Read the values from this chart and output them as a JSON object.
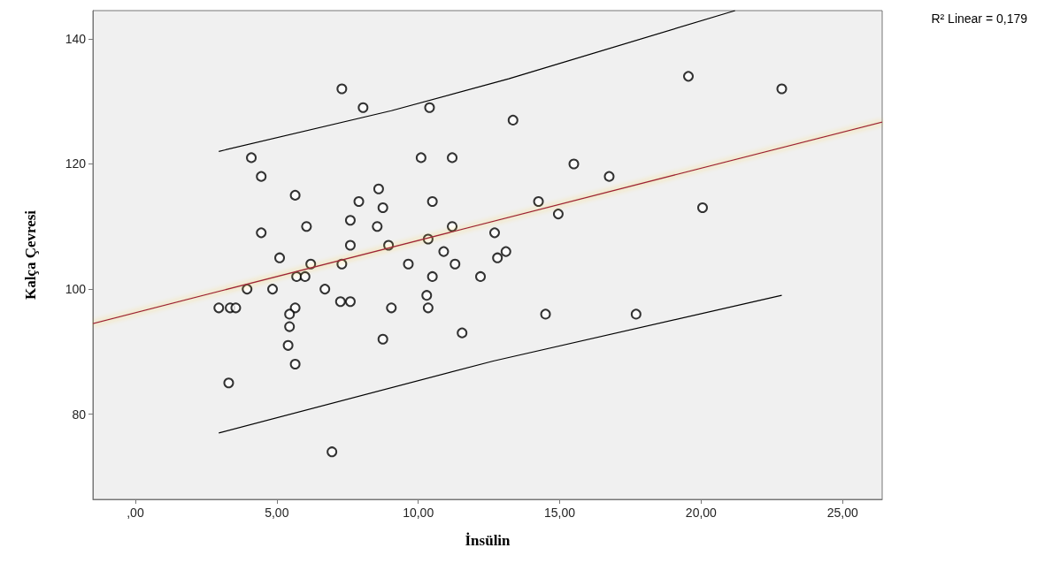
{
  "chart_data": {
    "type": "scatter",
    "xlabel": "İnsülin",
    "ylabel": "Kalça Çevresi",
    "annotations": [
      "R² Linear = 0,179"
    ],
    "xlim": [
      -1.5,
      26.4
    ],
    "ylim": [
      66.4,
      144.5
    ],
    "xticks": [
      {
        "value": 0,
        "label": ",00"
      },
      {
        "value": 5,
        "label": "5,00"
      },
      {
        "value": 10,
        "label": "10,00"
      },
      {
        "value": 15,
        "label": "15,00"
      },
      {
        "value": 20,
        "label": "20,00"
      },
      {
        "value": 25,
        "label": "25,00"
      }
    ],
    "yticks": [
      80,
      100,
      120,
      140
    ],
    "grid": false,
    "marker": "circle",
    "series": [
      {
        "color": "#000000",
        "x": [
          2.95,
          3.35,
          3.55,
          3.3,
          4.1,
          4.45,
          4.45,
          3.95,
          4.85,
          5.1,
          5.65,
          5.65,
          5.45,
          5.45,
          5.4,
          5.65,
          5.7,
          6.0,
          6.05,
          6.2,
          6.7,
          7.3,
          7.25,
          7.3,
          7.6,
          7.6,
          7.6,
          7.9,
          8.05,
          6.95,
          8.6,
          8.55,
          8.75,
          8.95,
          8.75,
          9.05,
          9.65,
          10.1,
          10.35,
          10.3,
          10.35,
          10.4,
          10.5,
          10.5,
          10.9,
          11.2,
          11.2,
          11.3,
          11.55,
          12.2,
          12.7,
          12.8,
          13.1,
          13.35,
          14.25,
          14.5,
          14.95,
          15.5,
          16.75,
          17.7,
          19.55,
          20.05,
          22.85
        ],
        "values": [
          97,
          97,
          97,
          85,
          121,
          118,
          109,
          100,
          100,
          105,
          115,
          97,
          96,
          94,
          91,
          88,
          102,
          102,
          110,
          104,
          100,
          132,
          98,
          104,
          111,
          107,
          98,
          114,
          129,
          74,
          116,
          110,
          113,
          107,
          92,
          97,
          104,
          121,
          108,
          99,
          97,
          129,
          114,
          102,
          106,
          121,
          110,
          104,
          93,
          102,
          109,
          105,
          106,
          127,
          114,
          96,
          112,
          120,
          118,
          96,
          134,
          113,
          132
        ]
      },
      {
        "type": "line",
        "marker": "none",
        "color": "#a0203c",
        "x": [
          -1.5,
          26.4
        ],
        "values": [
          94.5,
          126.7
        ]
      },
      {
        "type": "line",
        "marker": "none",
        "color": "#000000",
        "x": [
          2.95,
          9.05,
          13.2,
          21.2
        ],
        "values": [
          122,
          128.5,
          133.6,
          144.5
        ]
      },
      {
        "type": "line",
        "marker": "none",
        "color": "#000000",
        "x": [
          2.95,
          12.65,
          22.85
        ],
        "values": [
          77,
          88.5,
          99
        ]
      }
    ]
  }
}
